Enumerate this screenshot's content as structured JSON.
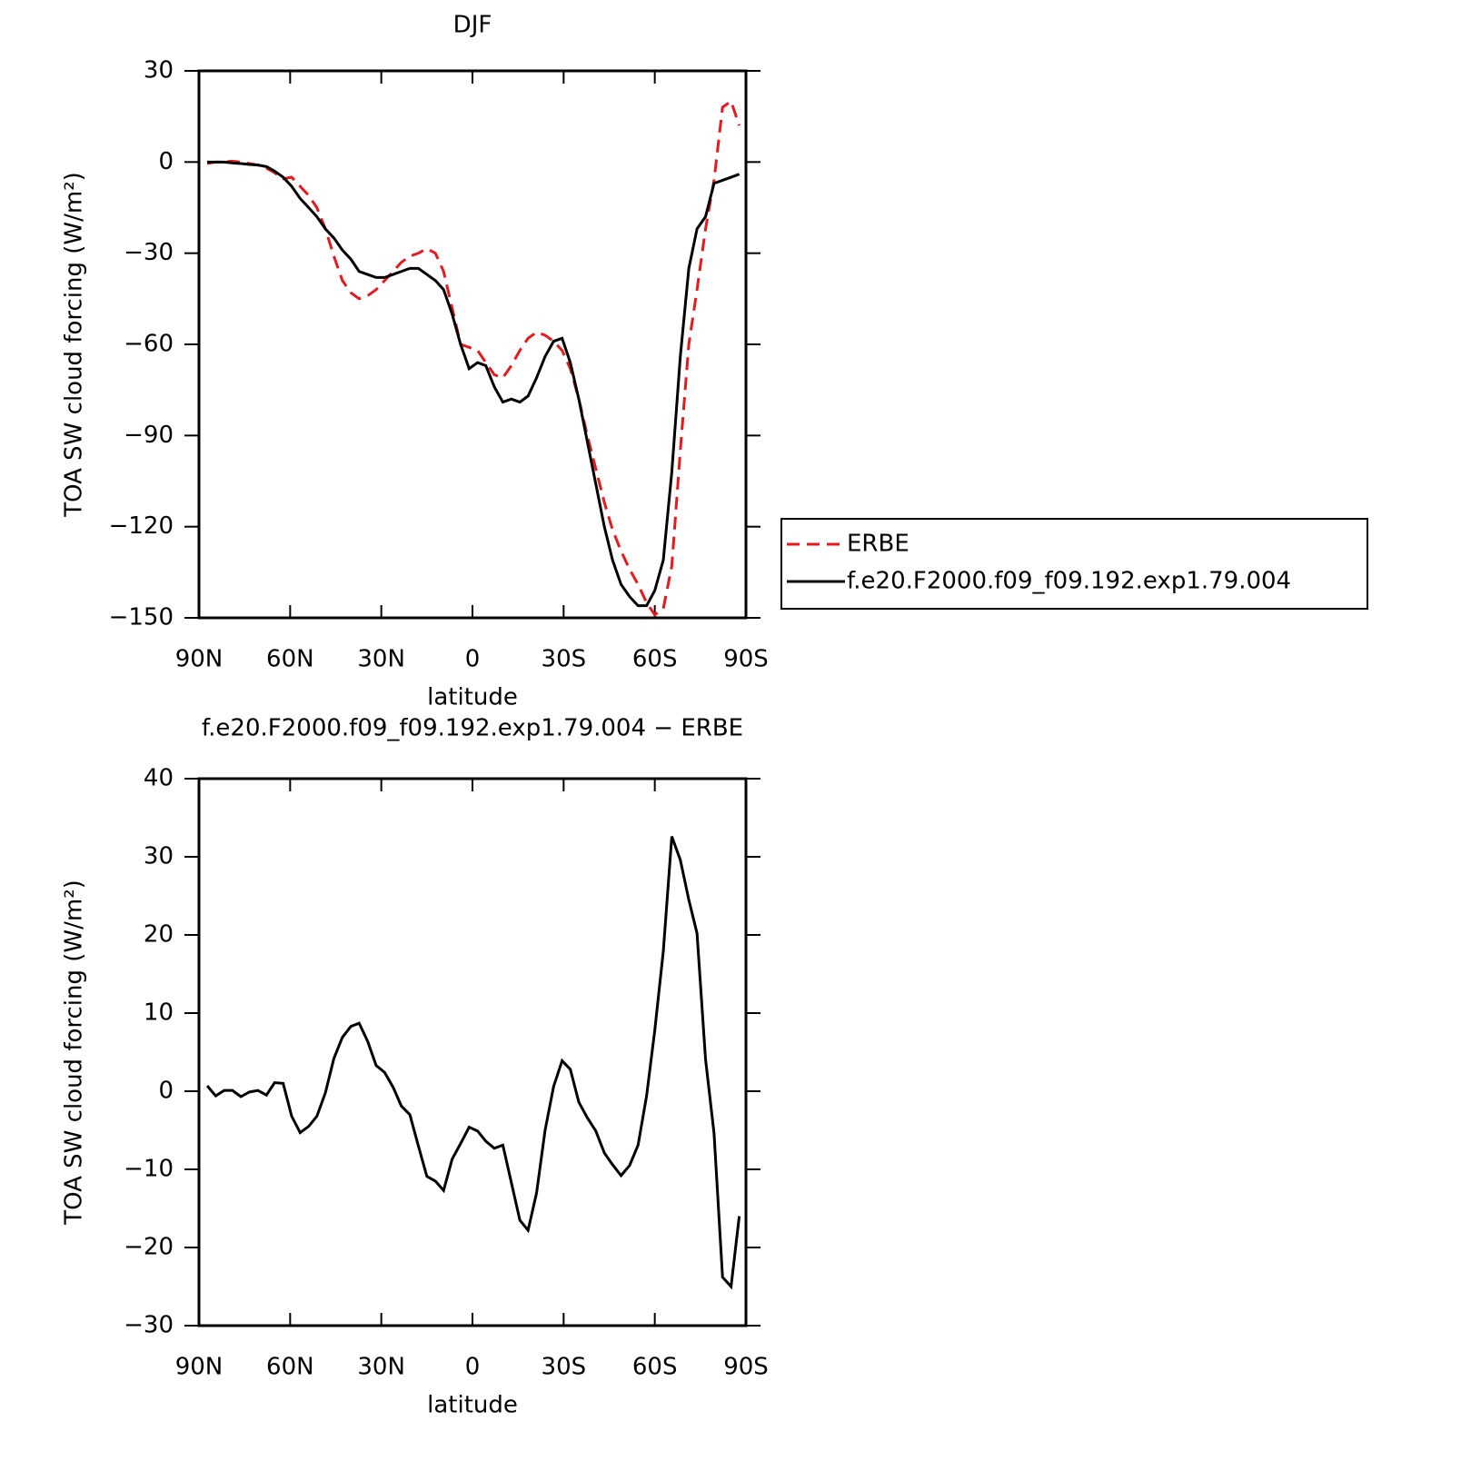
{
  "chart_data": [
    {
      "type": "line",
      "title": "DJF",
      "xlabel": "latitude",
      "ylabel": "TOA SW cloud forcing (W/m²)",
      "x": [
        87.3,
        84.5,
        81.7,
        79.0,
        76.2,
        73.4,
        70.6,
        67.8,
        65.1,
        62.3,
        59.5,
        56.7,
        53.9,
        51.2,
        48.4,
        45.6,
        42.8,
        40.0,
        37.3,
        34.5,
        31.7,
        28.9,
        26.1,
        23.4,
        20.6,
        17.8,
        15.0,
        12.2,
        9.5,
        6.7,
        3.9,
        1.1,
        -1.7,
        -4.4,
        -7.2,
        -10.0,
        -12.8,
        -15.6,
        -18.3,
        -21.1,
        -23.9,
        -26.7,
        -29.5,
        -32.2,
        -35.0,
        -37.8,
        -40.6,
        -43.4,
        -46.1,
        -48.9,
        -51.7,
        -54.5,
        -57.3,
        -60.0,
        -62.8,
        -65.6,
        -68.4,
        -71.2,
        -73.9,
        -76.7,
        -79.5,
        -82.3,
        -85.1,
        -87.8
      ],
      "series": [
        {
          "name": "ERBE",
          "color": "#e41a1c",
          "dashed": true,
          "values": [
            -0.5,
            0,
            0,
            0.3,
            0,
            -0.5,
            -1,
            -2,
            -3.5,
            -5.5,
            -5,
            -8,
            -11,
            -15,
            -22,
            -31,
            -39,
            -43,
            -45,
            -44,
            -42,
            -39,
            -36,
            -33,
            -31,
            -30,
            -28.5,
            -30,
            -36,
            -48,
            -60,
            -61,
            -62,
            -66,
            -70,
            -71,
            -67,
            -62,
            -58,
            -56,
            -57,
            -59,
            -62,
            -68,
            -78,
            -90,
            -101,
            -112,
            -121,
            -128,
            -134,
            -139,
            -145,
            -149,
            -147,
            -133,
            -95,
            -60,
            -42,
            -22,
            -6,
            18,
            20,
            12
          ]
        },
        {
          "name": "f.e20.F2000.f09_f09.192.exp1.79.004",
          "color": "#000000",
          "dashed": false,
          "values": [
            0,
            0,
            0,
            -0.3,
            -0.5,
            -0.8,
            -1,
            -1.5,
            -3,
            -5,
            -8,
            -12,
            -15,
            -18,
            -22,
            -25,
            -29,
            -32,
            -36,
            -37,
            -38,
            -38,
            -37,
            -36,
            -35,
            -35,
            -37,
            -39,
            -42,
            -50,
            -60,
            -68,
            -66,
            -67,
            -74,
            -79,
            -78,
            -79,
            -77,
            -71,
            -64,
            -59,
            -58,
            -66,
            -78,
            -92,
            -106,
            -120,
            -131,
            -139,
            -143,
            -146,
            -146,
            -141,
            -131,
            -102,
            -64,
            -35,
            -22,
            -18,
            -7,
            -6,
            -5,
            -4
          ]
        }
      ],
      "xlim": [
        90,
        -90
      ],
      "xticks": [
        {
          "value": 90,
          "label": "90N"
        },
        {
          "value": 60,
          "label": "60N"
        },
        {
          "value": 30,
          "label": "30N"
        },
        0,
        {
          "value": -30,
          "label": "30S"
        },
        {
          "value": -60,
          "label": "60S"
        },
        {
          "value": -90,
          "label": "90S"
        }
      ],
      "ylim": [
        -150,
        30
      ],
      "yticks": [
        30,
        0,
        {
          "value": -30,
          "label": "−30"
        },
        {
          "value": -60,
          "label": "−60"
        },
        {
          "value": -90,
          "label": "−90"
        },
        {
          "value": -120,
          "label": "−120"
        },
        {
          "value": -150,
          "label": "−150"
        }
      ],
      "legend": "right"
    },
    {
      "type": "line",
      "title": "f.e20.F2000.f09_f09.192.exp1.79.004 − ERBE",
      "xlabel": "latitude",
      "ylabel": "TOA SW cloud forcing (W/m²)",
      "x": [
        87.3,
        84.5,
        81.7,
        79.0,
        76.2,
        73.4,
        70.6,
        67.8,
        65.1,
        62.3,
        59.5,
        56.7,
        53.9,
        51.2,
        48.4,
        45.6,
        42.8,
        40.0,
        37.3,
        34.5,
        31.7,
        28.9,
        26.1,
        23.4,
        20.6,
        17.8,
        15.0,
        12.2,
        9.5,
        6.7,
        3.9,
        1.1,
        -1.7,
        -4.4,
        -7.2,
        -10.0,
        -12.8,
        -15.6,
        -18.3,
        -21.1,
        -23.9,
        -26.7,
        -29.5,
        -32.2,
        -35.0,
        -37.8,
        -40.6,
        -43.4,
        -46.1,
        -48.9,
        -51.7,
        -54.5,
        -57.3,
        -60.0,
        -62.8,
        -65.6,
        -68.4,
        -71.2,
        -73.9,
        -76.7,
        -79.5,
        -82.3,
        -85.1,
        -87.8
      ],
      "series": [
        {
          "color": "#000000",
          "dashed": false,
          "values": [
            0.7,
            -0.6,
            0.1,
            0.1,
            -0.7,
            -0.1,
            0.1,
            -0.5,
            1.1,
            1.0,
            -3.2,
            -5.3,
            -4.5,
            -3.2,
            -0.2,
            4.2,
            6.9,
            8.3,
            8.7,
            6.4,
            3.3,
            2.4,
            0.5,
            -1.9,
            -3.0,
            -7.0,
            -10.9,
            -11.5,
            -12.7,
            -8.7,
            -6.7,
            -4.6,
            -5.1,
            -6.4,
            -7.3,
            -6.9,
            -11.7,
            -16.5,
            -17.8,
            -13.0,
            -5.0,
            0.6,
            3.9,
            2.8,
            -1.4,
            -3.4,
            -5.1,
            -7.9,
            -9.4,
            -10.8,
            -9.5,
            -6.9,
            -0.6,
            7.8,
            17.9,
            32.6,
            29.6,
            24.5,
            20.2,
            4.1,
            -5.4,
            -23.8,
            -25.0,
            -16.0
          ]
        }
      ],
      "xlim": [
        90,
        -90
      ],
      "xticks": [
        {
          "value": 90,
          "label": "90N"
        },
        {
          "value": 60,
          "label": "60N"
        },
        {
          "value": 30,
          "label": "30N"
        },
        0,
        {
          "value": -30,
          "label": "30S"
        },
        {
          "value": -60,
          "label": "60S"
        },
        {
          "value": -90,
          "label": "90S"
        }
      ],
      "ylim": [
        -30,
        40
      ],
      "yticks": [
        40,
        30,
        20,
        10,
        0,
        {
          "value": -10,
          "label": "−10"
        },
        {
          "value": -20,
          "label": "−20"
        },
        {
          "value": -30,
          "label": "−30"
        }
      ]
    }
  ]
}
